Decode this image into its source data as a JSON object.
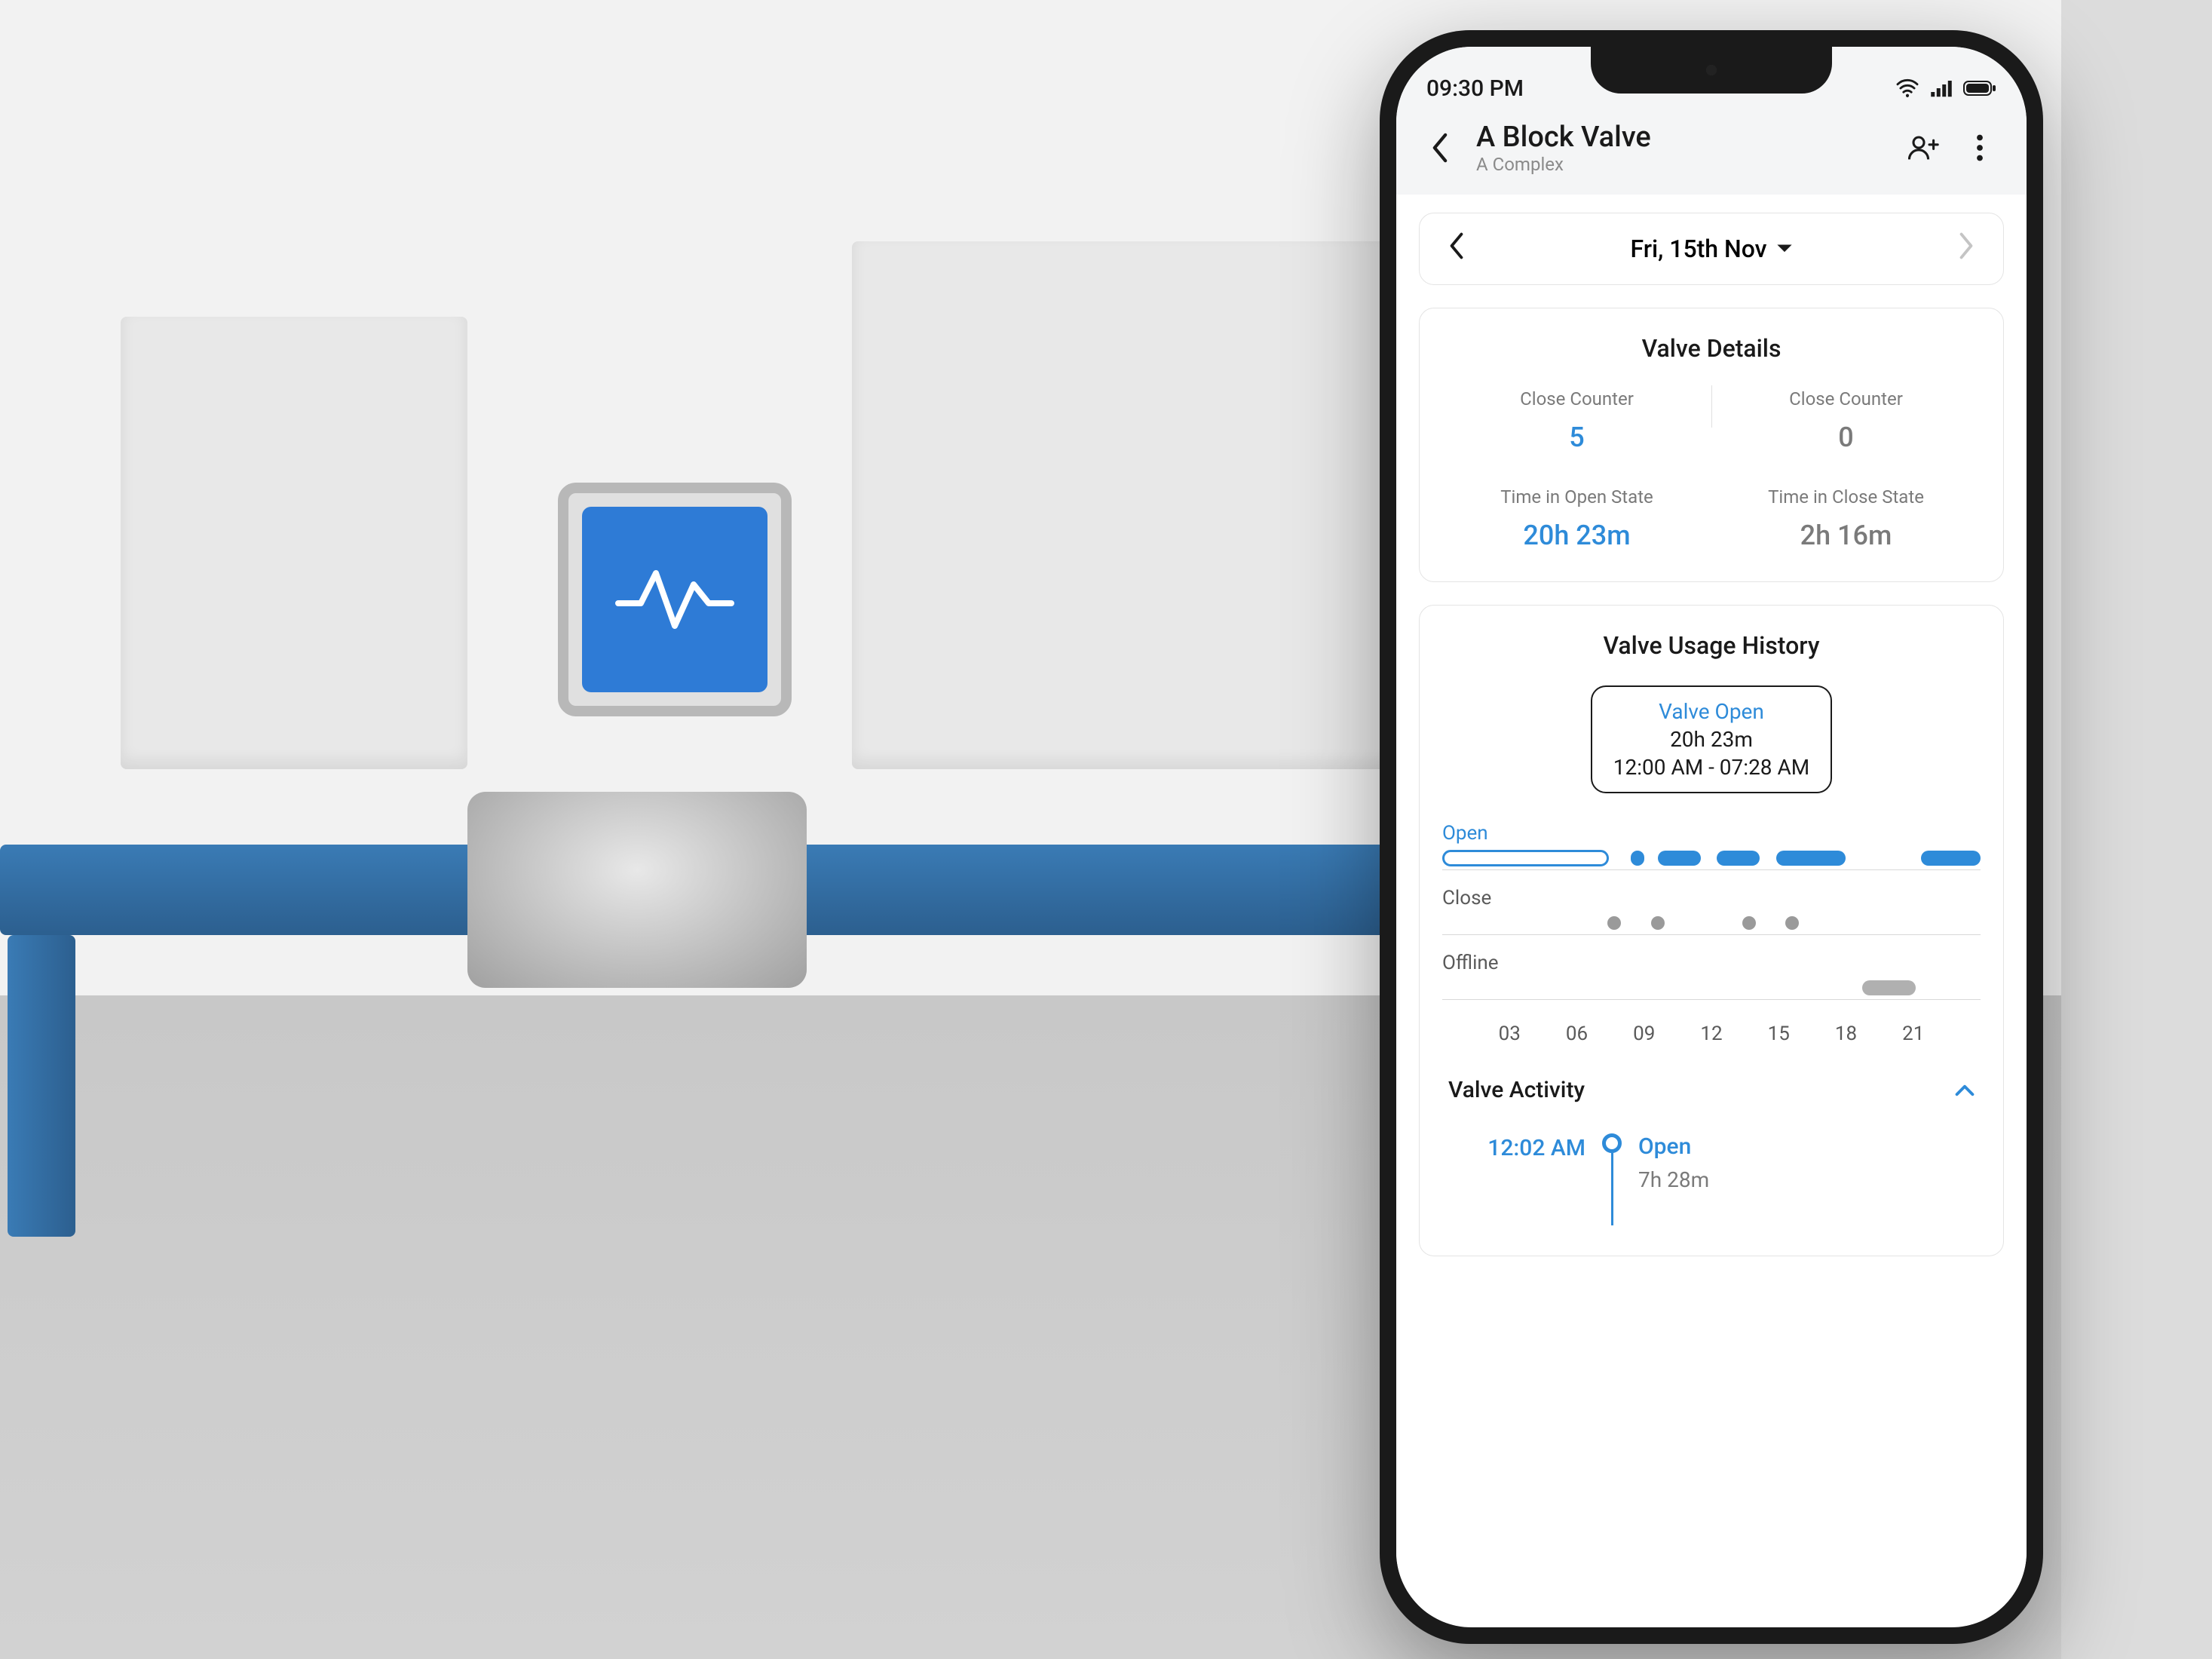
{
  "colors": {
    "accent": "#2e8bd9",
    "text": "#1a1a1a",
    "muted": "#7a7a7a",
    "border": "#e4e4e4",
    "track_gray": "#b0b0b0",
    "header_bg": "#f4f5f6"
  },
  "status": {
    "time": "09:30 PM"
  },
  "header": {
    "title": "A Block Valve",
    "subtitle": "A Complex"
  },
  "date_nav": {
    "label": "Fri, 15th Nov"
  },
  "details": {
    "title": "Valve Details",
    "cells": [
      {
        "label": "Close Counter",
        "value": "5",
        "style": "blue"
      },
      {
        "label": "Close Counter",
        "value": "0",
        "style": "gray"
      },
      {
        "label": "Time in Open State",
        "value": "20h 23m",
        "style": "blue"
      },
      {
        "label": "Time in Close State",
        "value": "2h 16m",
        "style": "gray"
      }
    ]
  },
  "history": {
    "title": "Valve Usage History",
    "tooltip": {
      "state": "Valve Open",
      "duration": "20h 23m",
      "range": "12:00 AM - 07:28 AM"
    },
    "tracks": {
      "open": {
        "label": "Open",
        "segments": [
          {
            "start": 0,
            "end": 31,
            "outline": true
          },
          {
            "start": 35,
            "end": 37.5
          },
          {
            "start": 40,
            "end": 48
          },
          {
            "start": 51,
            "end": 59
          },
          {
            "start": 62,
            "end": 75
          },
          {
            "start": 89,
            "end": 100
          }
        ]
      },
      "close": {
        "label": "Close",
        "dots": [
          32,
          40,
          57,
          65
        ]
      },
      "offline": {
        "label": "Offline",
        "segments": [
          {
            "start": 78,
            "end": 88
          }
        ]
      },
      "x_ticks": [
        "03",
        "06",
        "09",
        "12",
        "15",
        "18",
        "21"
      ]
    }
  },
  "activity": {
    "title": "Valve Activity",
    "rows": [
      {
        "time": "12:02 AM",
        "state": "Open",
        "duration": "7h 28m"
      }
    ]
  }
}
